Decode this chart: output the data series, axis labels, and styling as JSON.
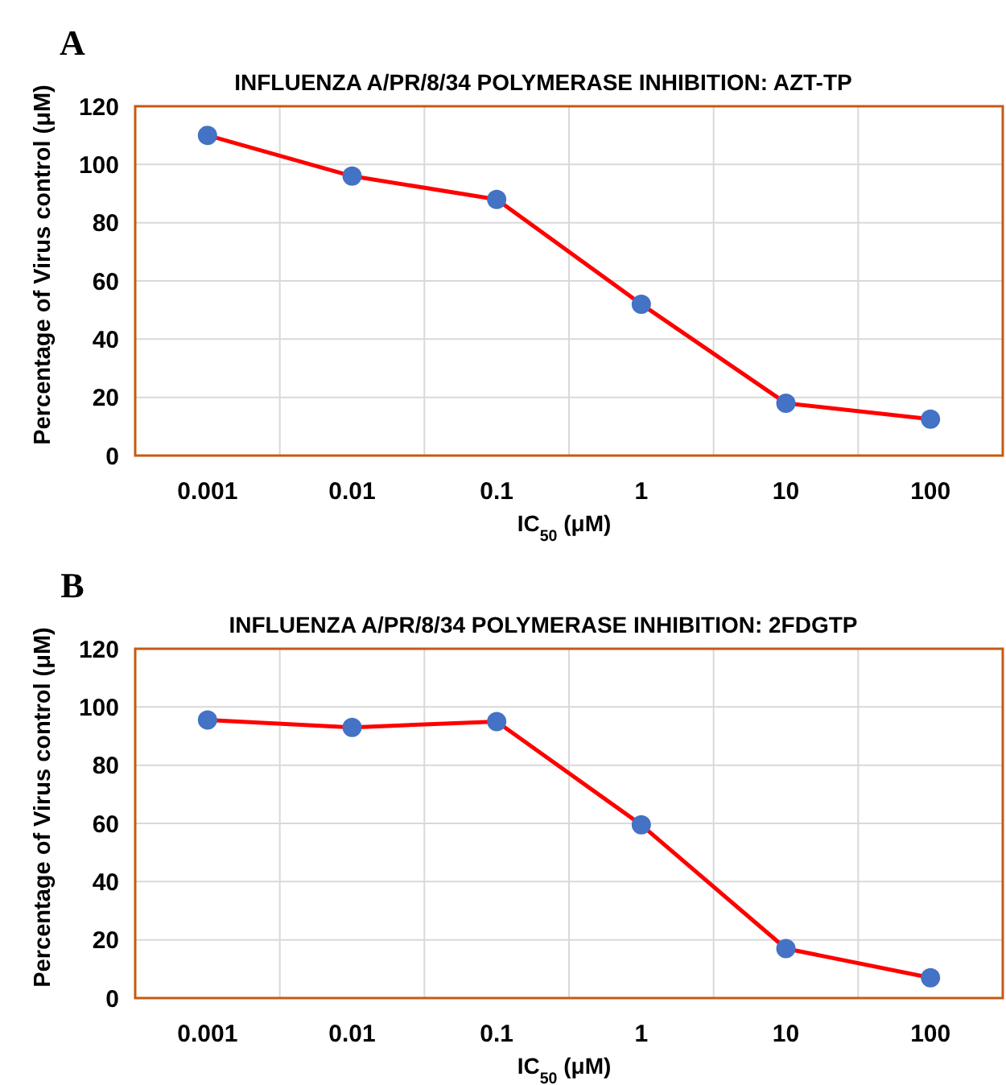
{
  "chart_data": [
    {
      "type": "line",
      "title": "INFLUENZA A/PR/8/34 POLYMERASE INHIBITION: AZT-TP",
      "xlabel": "IC$_{50}$ (μM)",
      "ylabel": "Percentage of Virus control (μM)",
      "annotations": [
        "A"
      ],
      "categories": [
        "0.001",
        "0.01",
        "0.1",
        "1",
        "10",
        "100"
      ],
      "series": [
        {
          "color": "#ff0000",
          "values": [
            110,
            96,
            88,
            52,
            18,
            12.5
          ]
        }
      ],
      "ylim": [
        0,
        120
      ],
      "yticks": [
        0,
        20,
        40,
        60,
        80,
        100,
        120
      ],
      "grid": true,
      "marker": "circle",
      "line_style": "solid"
    },
    {
      "type": "line",
      "title": "INFLUENZA A/PR/8/34 POLYMERASE INHIBITION: 2FDGTP",
      "xlabel": "IC$_{50}$ (μM)",
      "ylabel": "Percentage of Virus control (μM)",
      "annotations": [
        "B"
      ],
      "categories": [
        "0.001",
        "0.01",
        "0.1",
        "1",
        "10",
        "100"
      ],
      "series": [
        {
          "color": "#ff0000",
          "values": [
            95.5,
            93,
            95,
            59.5,
            17,
            7
          ]
        }
      ],
      "ylim": [
        0,
        120
      ],
      "yticks": [
        0,
        20,
        40,
        60,
        80,
        100,
        120
      ],
      "grid": true,
      "marker": "circle",
      "line_style": "solid"
    }
  ]
}
